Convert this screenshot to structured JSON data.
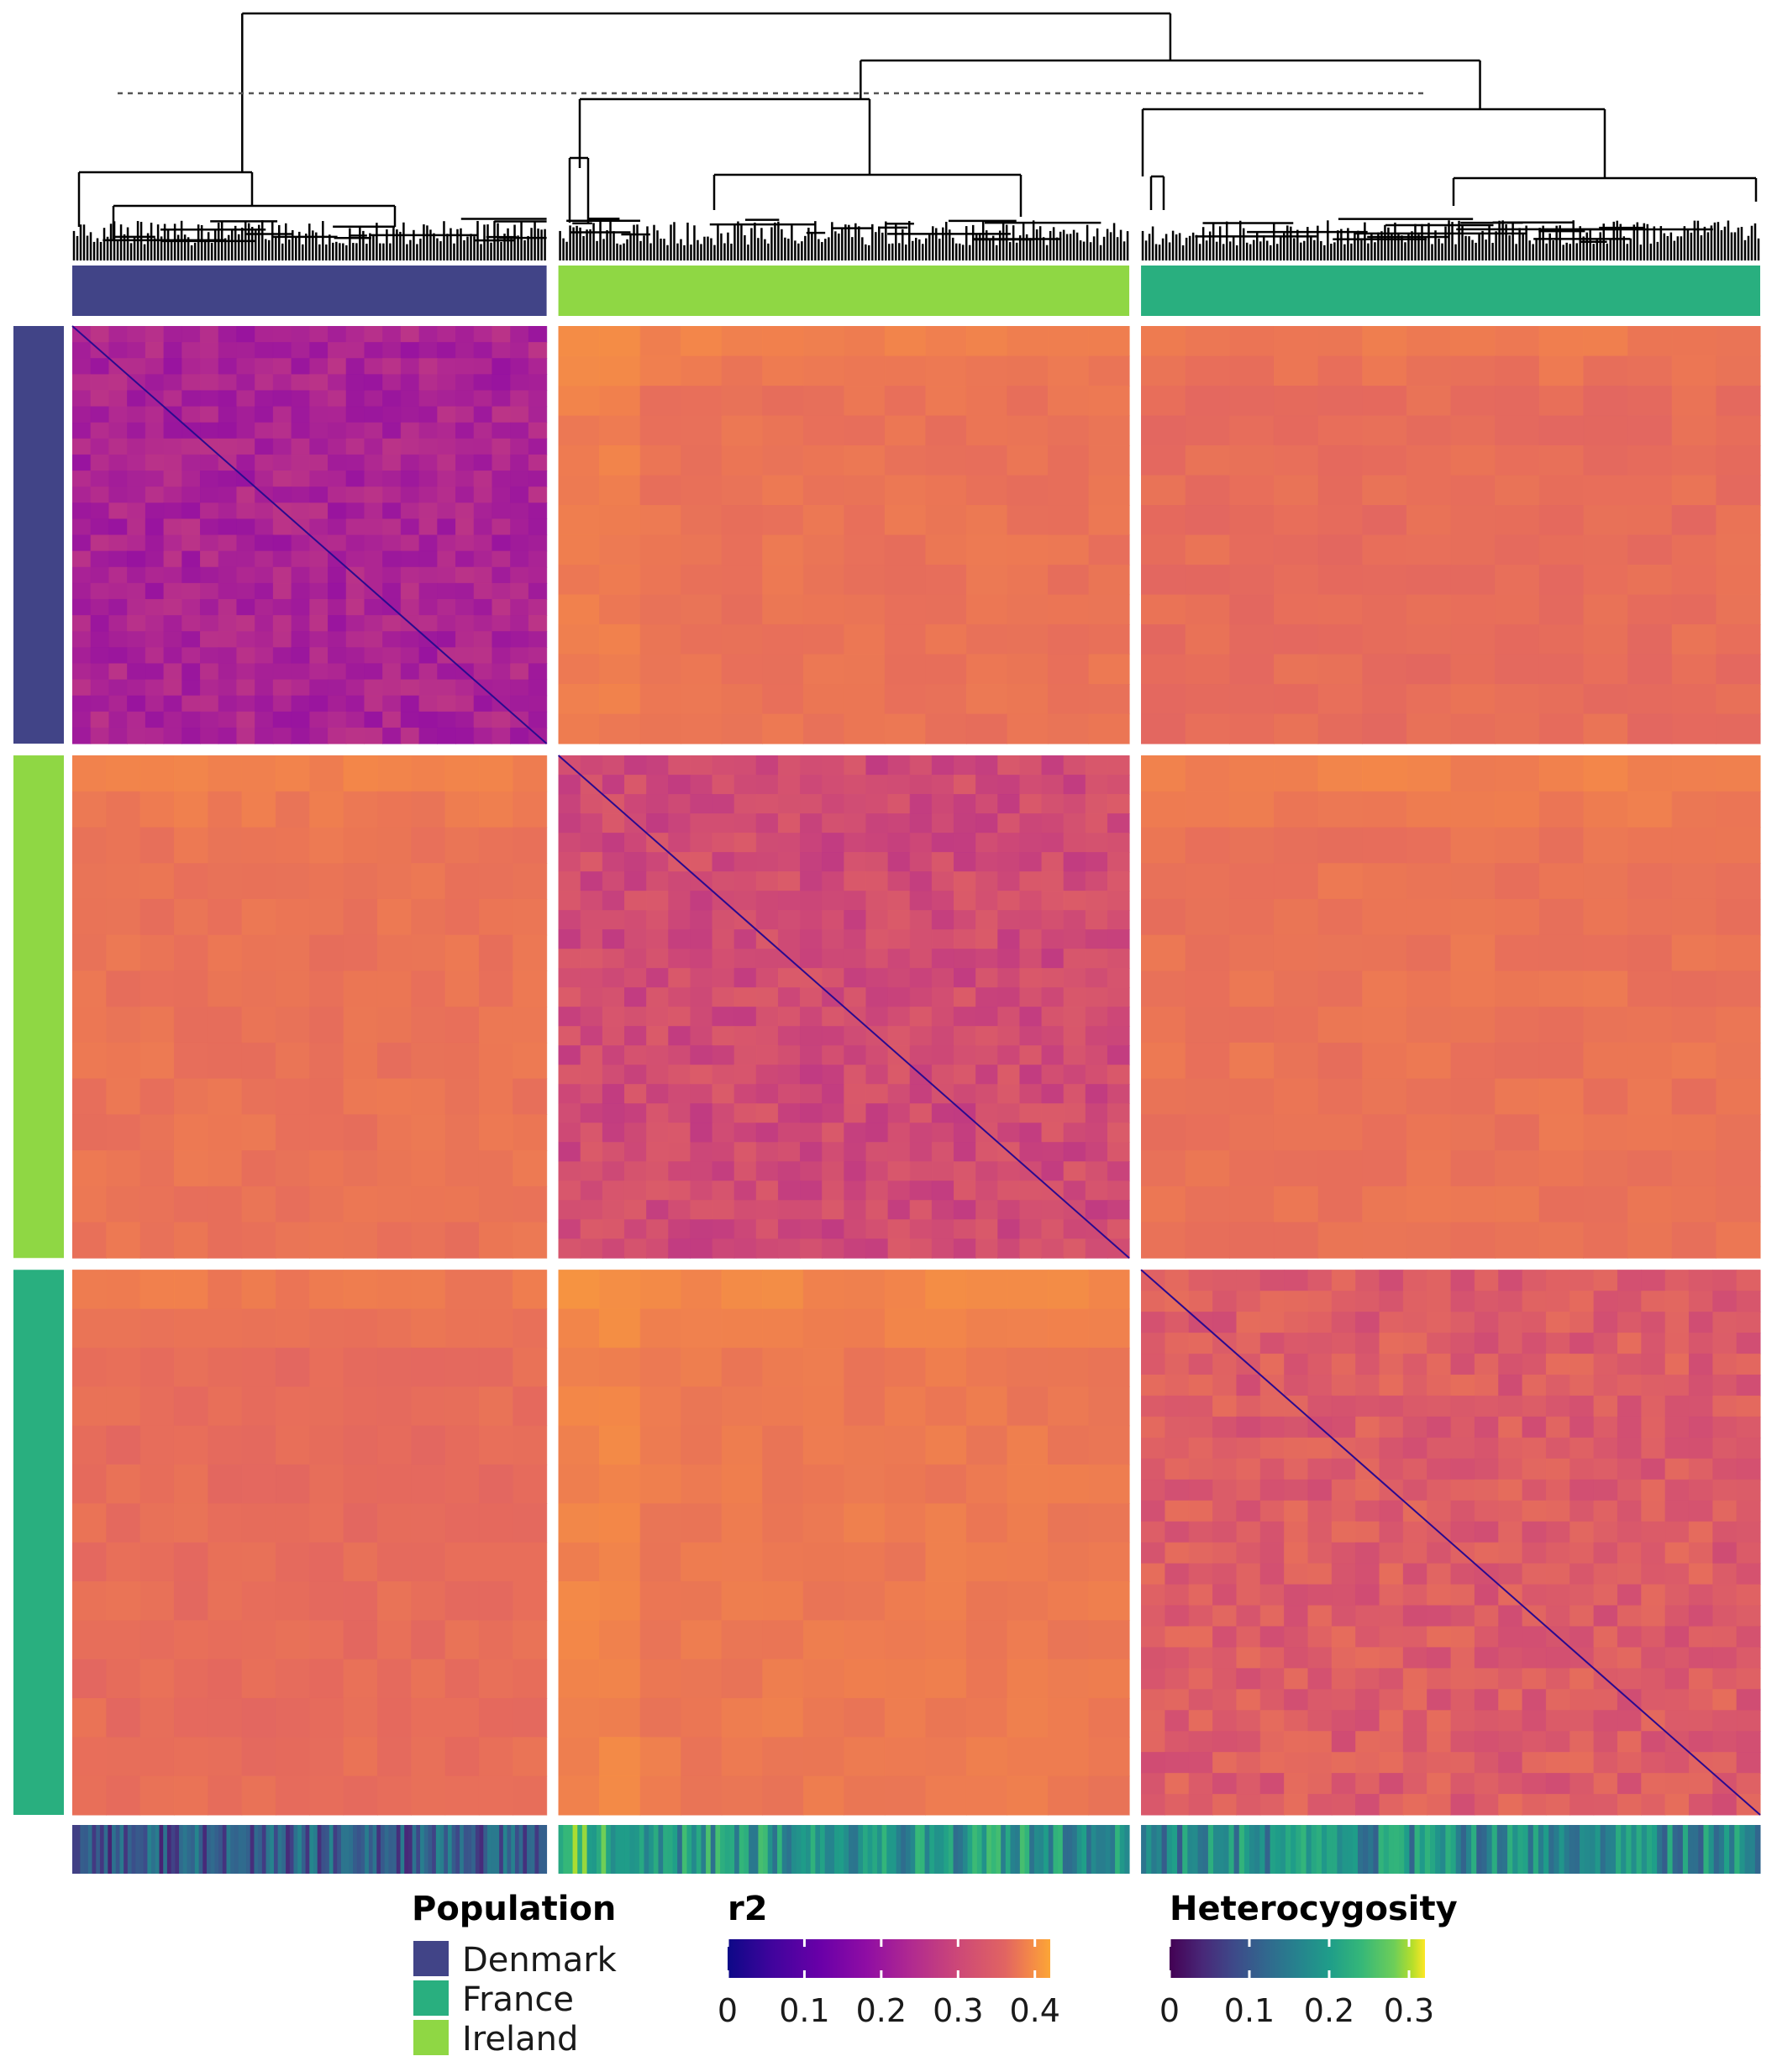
{
  "chart_data": {
    "type": "heatmap",
    "description_value_type": "pairwise r2 (linkage disequilibrium) between samples, clustered",
    "groups": [
      {
        "name": "Denmark",
        "color": "#414487",
        "width_share": 0.285
      },
      {
        "name": "Ireland",
        "color": "#8FD744",
        "width_share": 0.343
      },
      {
        "name": "France",
        "color": "#29AF7F",
        "width_share": 0.372
      }
    ],
    "block_mean_r2": [
      [
        0.2,
        0.34,
        0.33
      ],
      [
        0.34,
        0.27,
        0.34
      ],
      [
        0.33,
        0.35,
        0.3
      ]
    ],
    "mean_heterozygosity": {
      "Denmark": 0.09,
      "Ireland": 0.17,
      "France": 0.15
    },
    "dendrogram": {
      "cut_line": "dashed",
      "clusters": 3
    }
  },
  "legend": {
    "population": {
      "title": "Population",
      "items": [
        {
          "label": "Denmark",
          "color": "#414487"
        },
        {
          "label": "France",
          "color": "#29AF7F"
        },
        {
          "label": "Ireland",
          "color": "#8FD744"
        }
      ]
    },
    "r2": {
      "title": "r2",
      "scale": "plasma",
      "range": [
        0,
        0.42
      ],
      "ticks": [
        "0",
        "0.1",
        "0.2",
        "0.3",
        "0.4"
      ],
      "tick_values": [
        0,
        0.1,
        0.2,
        0.3,
        0.4
      ]
    },
    "heterozygosity": {
      "title": "Heterocygosity",
      "scale": "viridis",
      "range": [
        0,
        0.32
      ],
      "ticks": [
        "0",
        "0.1",
        "0.2",
        "0.3"
      ],
      "tick_values": [
        0,
        0.1,
        0.2,
        0.3
      ]
    }
  }
}
